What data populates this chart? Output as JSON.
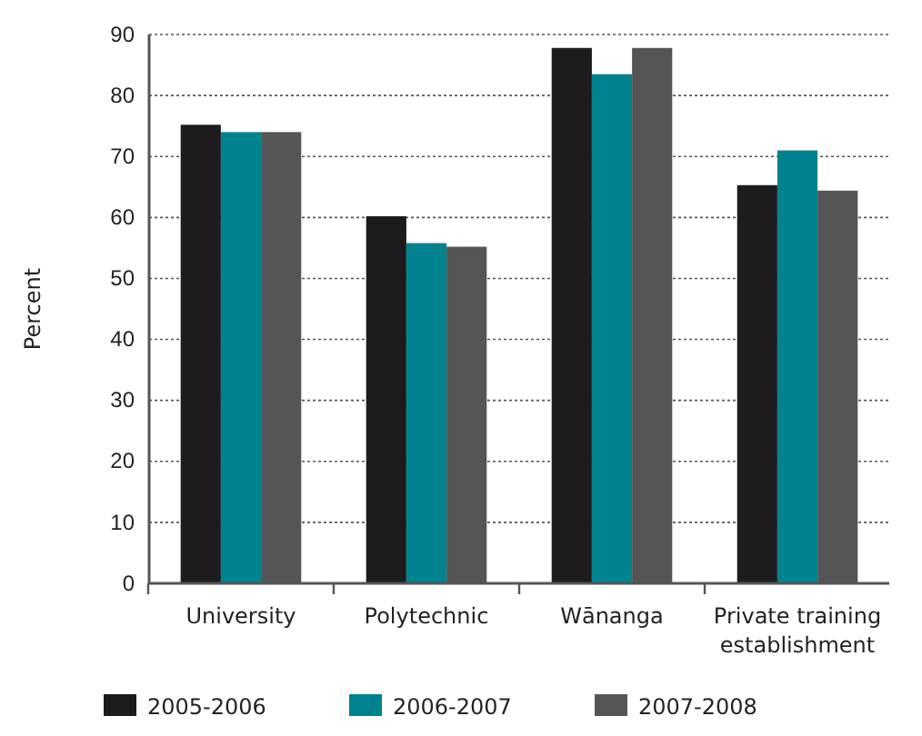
{
  "chart_data": {
    "type": "bar",
    "ylabel": "Percent",
    "categories": [
      "University",
      "Polytechnic",
      "Wānanga",
      "Private training establishment"
    ],
    "series": [
      {
        "name": "2005-2006",
        "color": "#1d1b1e",
        "values": [
          75.2,
          60.2,
          87.8,
          65.3
        ]
      },
      {
        "name": "2006-2007",
        "color": "#00838f",
        "values": [
          74,
          55.8,
          83.5,
          71
        ]
      },
      {
        "name": "2007-2008",
        "color": "#555555",
        "values": [
          74,
          55.2,
          87.8,
          64.4
        ]
      }
    ],
    "ylim": [
      0,
      90
    ],
    "yticks": [
      0,
      10,
      20,
      30,
      40,
      50,
      60,
      70,
      80,
      90
    ],
    "grid": "y",
    "legend": "bottom"
  }
}
